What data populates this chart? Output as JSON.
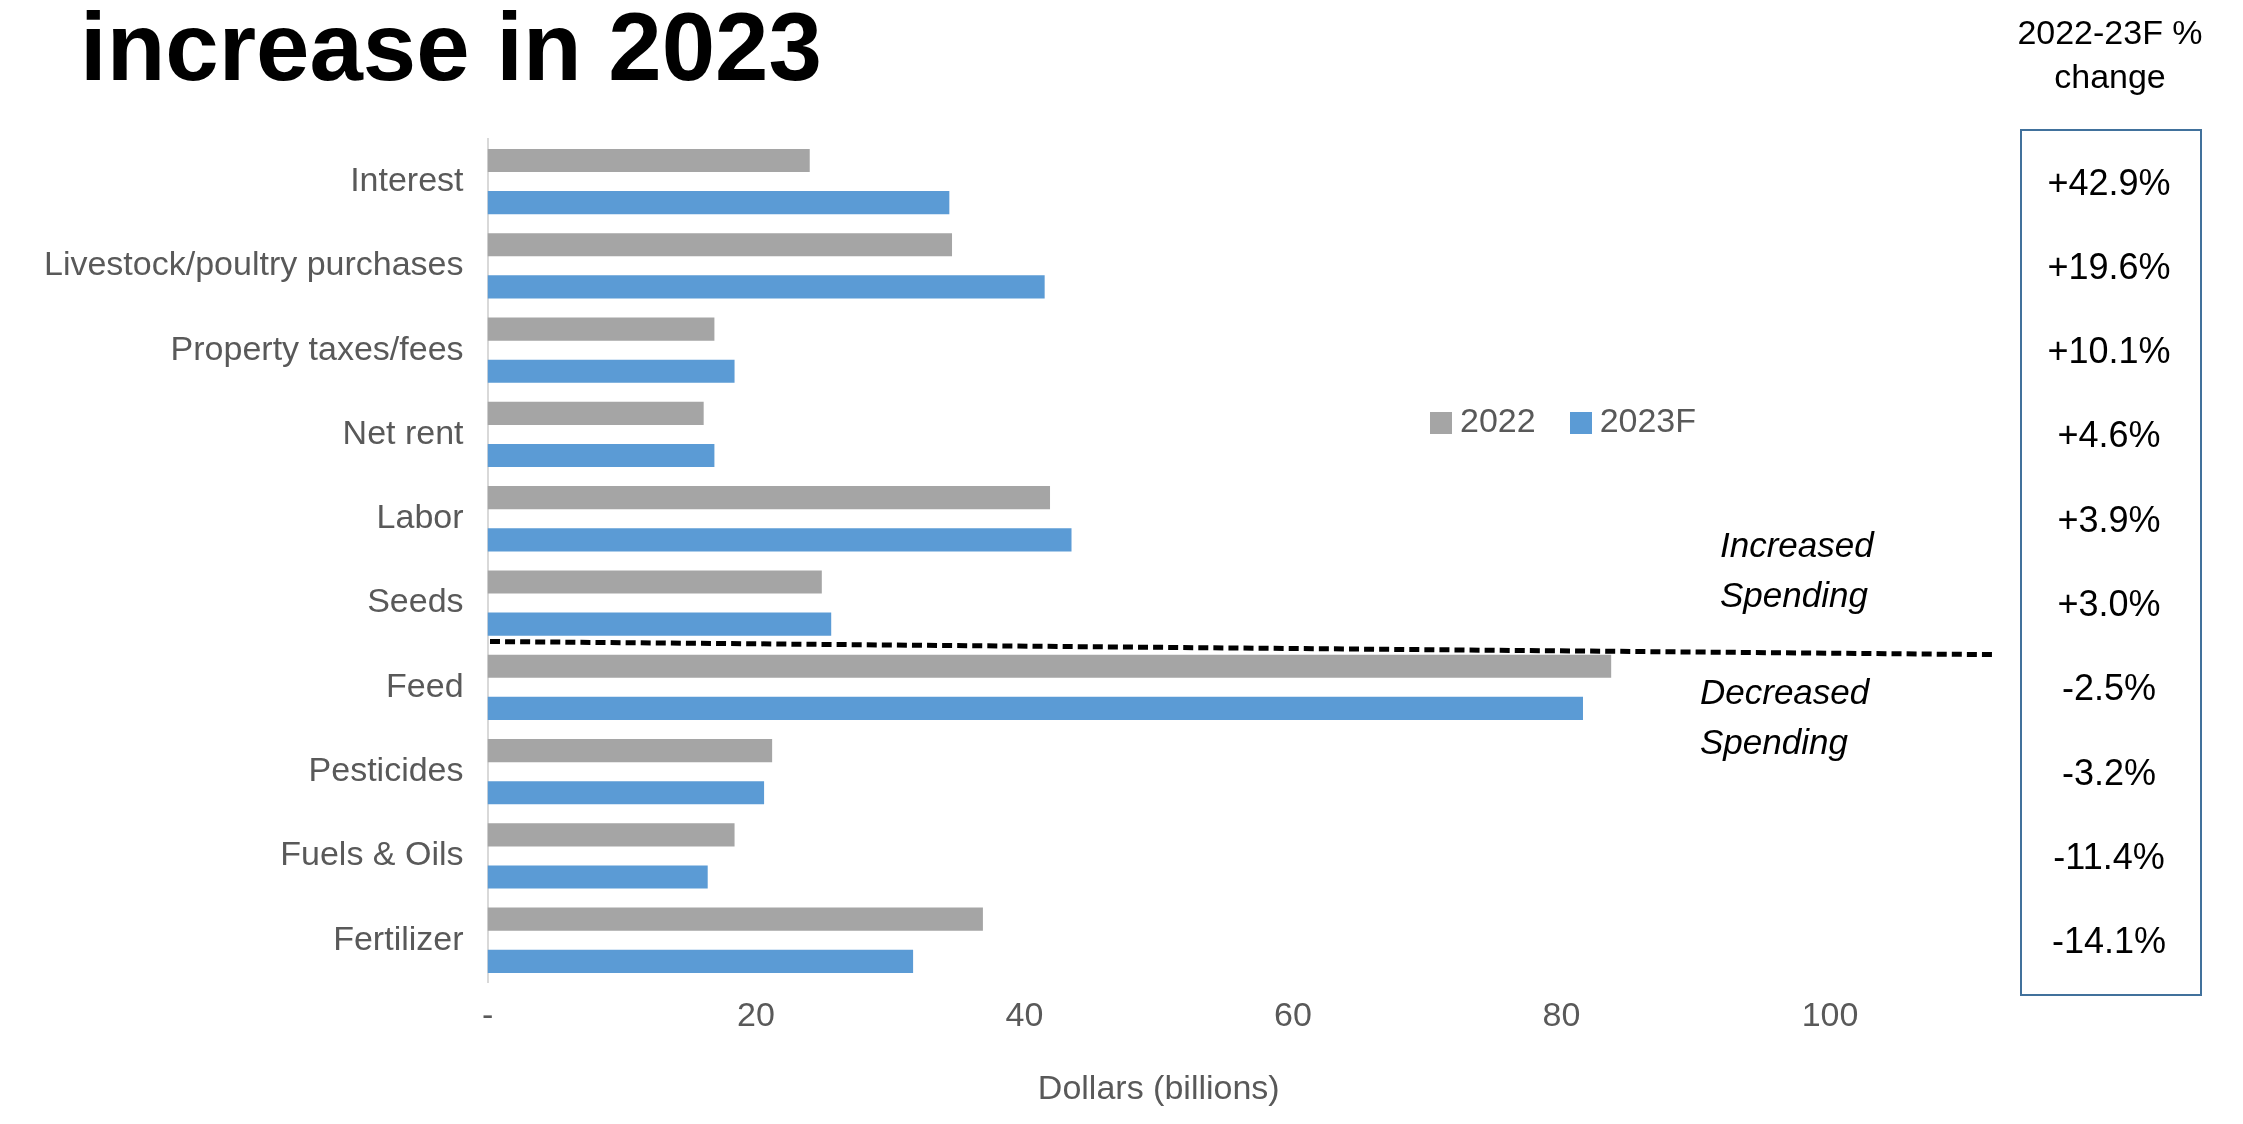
{
  "chart_data": {
    "type": "bar",
    "orientation": "horizontal",
    "title": "increase in 2023",
    "xlabel": "Dollars (billions)",
    "categories": [
      "Interest",
      "Livestock/poultry purchases",
      "Property taxes/fees",
      "Net rent",
      "Labor",
      "Seeds",
      "Feed",
      "Pesticides",
      "Fuels & Oils",
      "Fertilizer"
    ],
    "series": [
      {
        "name": "2022",
        "color": "#a5a5a5",
        "values": [
          24.0,
          34.6,
          16.9,
          16.1,
          41.9,
          24.9,
          83.7,
          21.2,
          18.4,
          36.9
        ]
      },
      {
        "name": "2023F",
        "color": "#5b9bd5",
        "values": [
          34.4,
          41.5,
          18.4,
          16.9,
          43.5,
          25.6,
          81.6,
          20.6,
          16.4,
          31.7
        ]
      }
    ],
    "xlim": [
      0,
      100
    ],
    "xticks": [
      {
        "value": 0,
        "label": "-"
      },
      20,
      40,
      60,
      80,
      100
    ],
    "grid": false,
    "legend": "right",
    "annotations": [
      "2022-23F  % change",
      "+42.9%",
      "+19.6%",
      "+10.1%",
      "+4.6%",
      "+3.9%",
      "+3.0%",
      "-2.5%",
      "-3.2%",
      "-11.4%",
      "-14.1%",
      "Increased Spending",
      "Decreased Spending"
    ]
  }
}
